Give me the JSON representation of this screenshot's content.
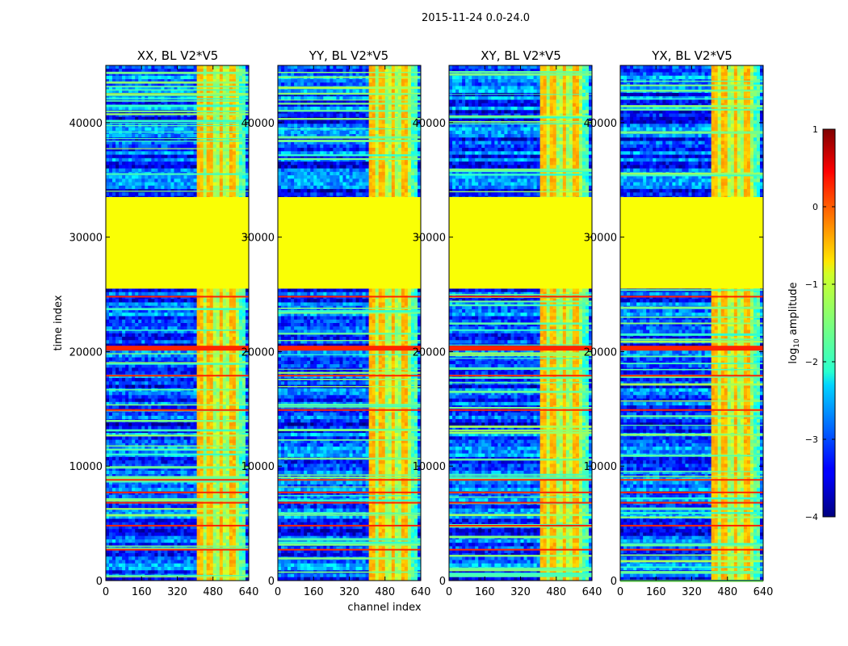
{
  "chart_data": {
    "type": "heatmap",
    "suptitle": "2015-11-24 0.0-24.0",
    "xlabel": "channel index",
    "ylabel": "time index",
    "xlim": [
      0,
      640
    ],
    "ylim": [
      0,
      45000
    ],
    "xticks": [
      0,
      160,
      320,
      480,
      640
    ],
    "yticks": [
      0,
      10000,
      20000,
      30000,
      40000
    ],
    "xtick_labels": [
      "0",
      "160",
      "320",
      "480",
      "640"
    ],
    "ytick_labels": [
      "0",
      "10000",
      "20000",
      "30000",
      "40000"
    ],
    "panels": [
      {
        "title": "XX, BL V2*V5",
        "rfi_band_channels": [
          405,
          600
        ]
      },
      {
        "title": "YY, BL V2*V5",
        "rfi_band_channels": [
          405,
          600
        ]
      },
      {
        "title": "XY, BL V2*V5",
        "rfi_band_channels": [
          405,
          600
        ]
      },
      {
        "title": "YX, BL V2*V5",
        "rfi_band_channels": [
          405,
          600
        ]
      }
    ],
    "flagged_time_range": [
      25500,
      33500
    ],
    "flagged_value_log10": -0.9,
    "bright_rows_time": [
      20300,
      14900,
      17900,
      8800,
      7700,
      6800,
      4800,
      2700,
      24800
    ],
    "bright_row_value_log10": 0.2,
    "background_range_log10": [
      -3.6,
      -1.8
    ],
    "colorbar": {
      "label": "log10 amplitude",
      "label_prefix": "log",
      "label_subscript": "10",
      "label_suffix": " amplitude",
      "range": [
        -4,
        1
      ],
      "ticks": [
        1,
        0,
        -1,
        -2,
        -3,
        -4
      ],
      "tick_labels": [
        "1",
        "0",
        "−1",
        "−2",
        "−3",
        "−4"
      ],
      "colormap": "jet"
    }
  }
}
